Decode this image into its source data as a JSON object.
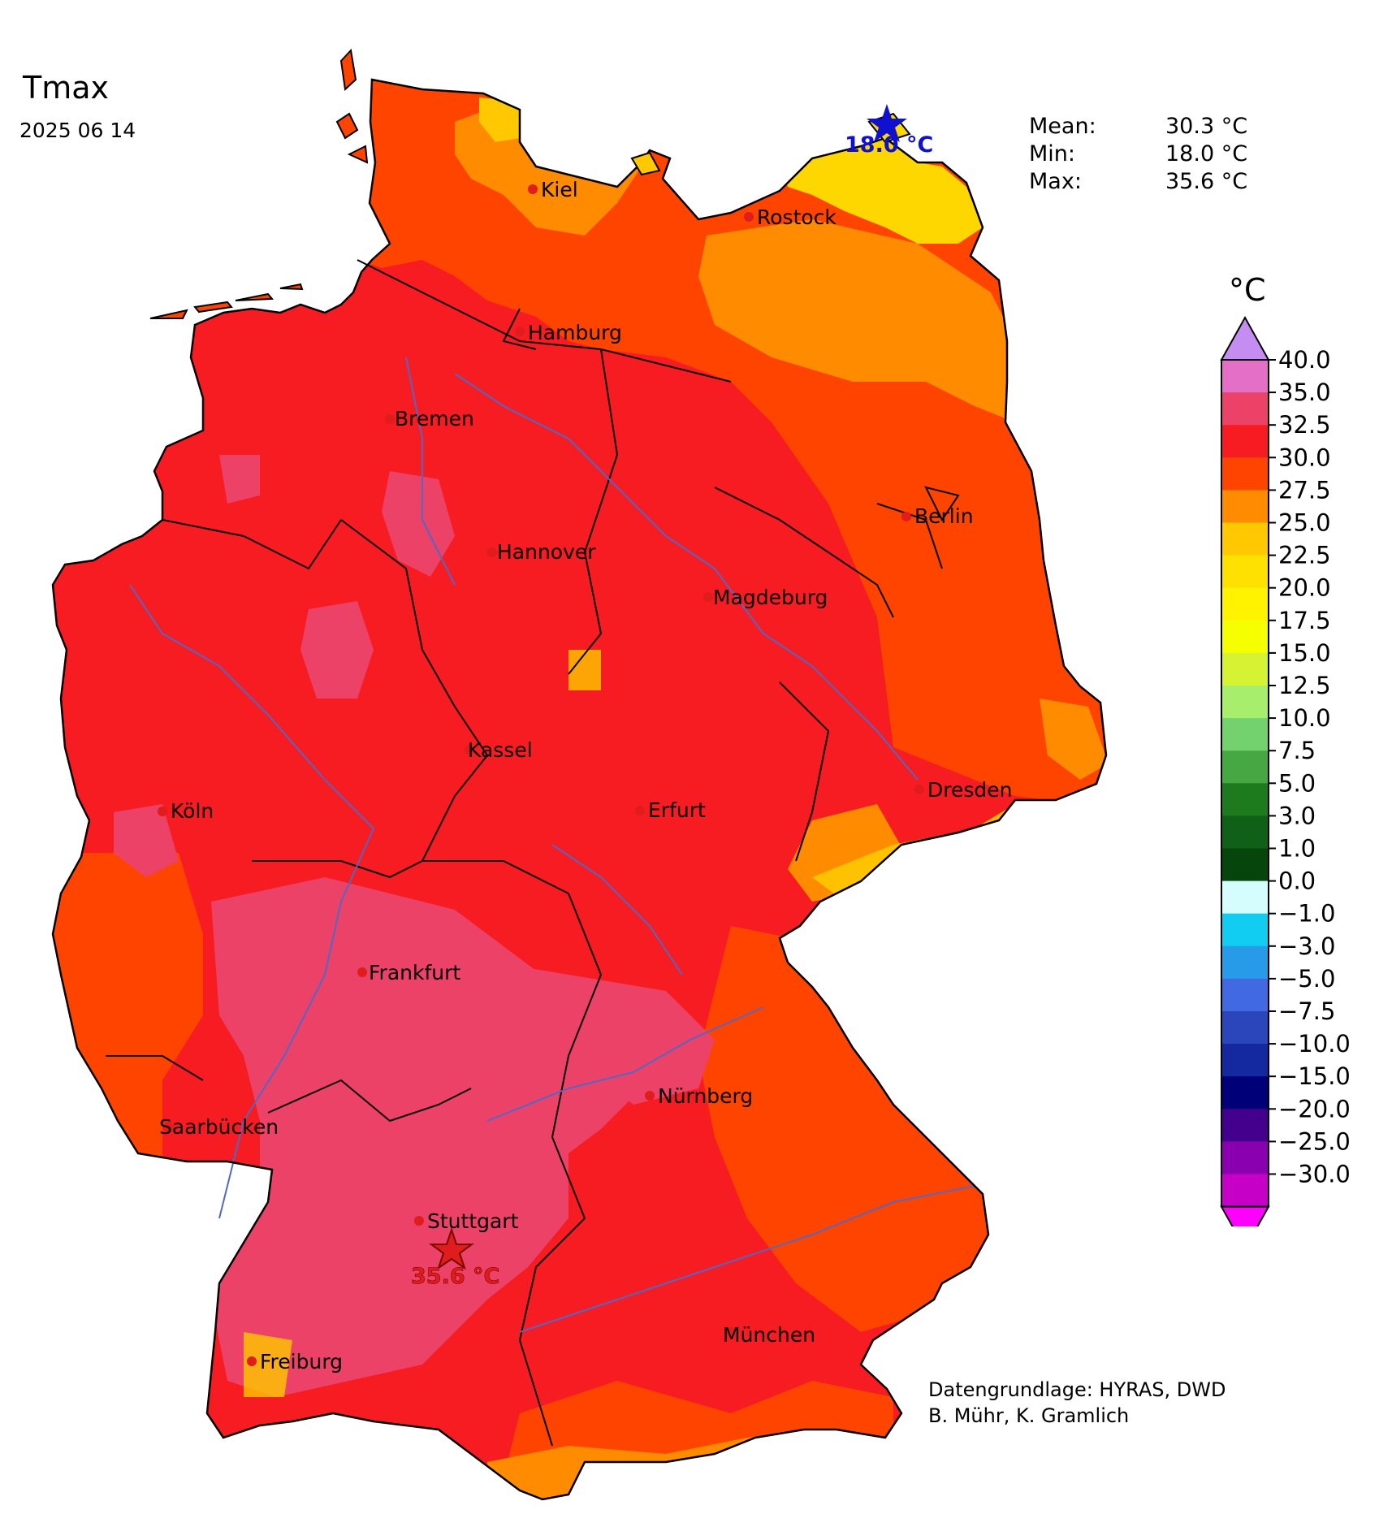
{
  "map": {
    "title": "Tmax",
    "date": "2025 06 14"
  },
  "stats": [
    {
      "label": "Mean:",
      "value": "30.3 °C"
    },
    {
      "label": "Min:",
      "value": "18.0 °C"
    },
    {
      "label": "Max:",
      "value": "35.6 °C"
    }
  ],
  "markers": {
    "min": {
      "label": "18.0 °C",
      "color": "#1010d0"
    },
    "max": {
      "label": "35.6 °C",
      "color": "#e01c1c"
    }
  },
  "cities": [
    "Kiel",
    "Rostock",
    "Hamburg",
    "Bremen",
    "Berlin",
    "Hannover",
    "Magdeburg",
    "Kassel",
    "Dresden",
    "Köln",
    "Erfurt",
    "Frankfurt",
    "Nürnberg",
    "Saarbücken",
    "Stuttgart",
    "München",
    "Freiburg"
  ],
  "colorbar": {
    "unit": "°C",
    "ticks": [
      "40.0",
      "35.0",
      "32.5",
      "30.0",
      "27.5",
      "25.0",
      "22.5",
      "20.0",
      "17.5",
      "15.0",
      "12.5",
      "10.0",
      "7.5",
      "5.0",
      "3.0",
      "1.0",
      "0.0",
      "−1.0",
      "−3.0",
      "−5.0",
      "−7.5",
      "−10.0",
      "−15.0",
      "−20.0",
      "−25.0",
      "−30.0"
    ],
    "colors": [
      "#e46fc6",
      "#ec4267",
      "#f71b22",
      "#ff4400",
      "#ff8c00",
      "#ffc800",
      "#ffe100",
      "#fff300",
      "#f5ff00",
      "#d5f233",
      "#a7ee6c",
      "#74d26e",
      "#45a843",
      "#1d7b1e",
      "#106018",
      "#06460d",
      "#d5fdfd",
      "#12cdf2",
      "#289be8",
      "#4169e1",
      "#2b45bb",
      "#1428a0",
      "#000078",
      "#42008c",
      "#8a00b0",
      "#c600c6"
    ],
    "over_color": "#c58df2",
    "under_color": "#ff00ff"
  },
  "credits": {
    "line1": "Datengrundlage: HYRAS, DWD",
    "line2": " B. Mühr, K. Gramlich"
  }
}
